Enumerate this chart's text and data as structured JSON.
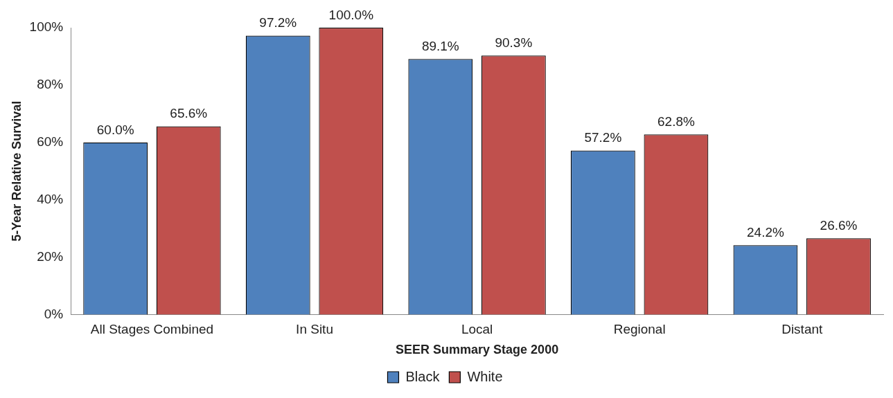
{
  "chart_data": {
    "type": "bar",
    "xlabel": "SEER Summary Stage 2000",
    "ylabel": "5-Year Relative Survival",
    "categories": [
      "All Stages Combined",
      "In Situ",
      "Local",
      "Regional",
      "Distant"
    ],
    "series": [
      {
        "name": "Black",
        "color": "#4f81bd",
        "values": [
          60.0,
          97.2,
          89.1,
          57.2,
          24.2
        ],
        "value_labels": [
          "60.0%",
          "97.2%",
          "89.1%",
          "57.2%",
          "24.2%"
        ]
      },
      {
        "name": "White",
        "color": "#c0504d",
        "values": [
          65.6,
          100.0,
          90.3,
          62.8,
          26.6
        ],
        "value_labels": [
          "65.6%",
          "100.0%",
          "90.3%",
          "62.8%",
          "26.6%"
        ]
      }
    ],
    "ylim": [
      0,
      100
    ],
    "yticks": [
      {
        "value": 0,
        "label": "0%"
      },
      {
        "value": 20,
        "label": "20%"
      },
      {
        "value": 40,
        "label": "40%"
      },
      {
        "value": 60,
        "label": "60%"
      },
      {
        "value": 80,
        "label": "80%"
      },
      {
        "value": 100,
        "label": "100%"
      }
    ],
    "grid": false,
    "legend": "bottom"
  }
}
